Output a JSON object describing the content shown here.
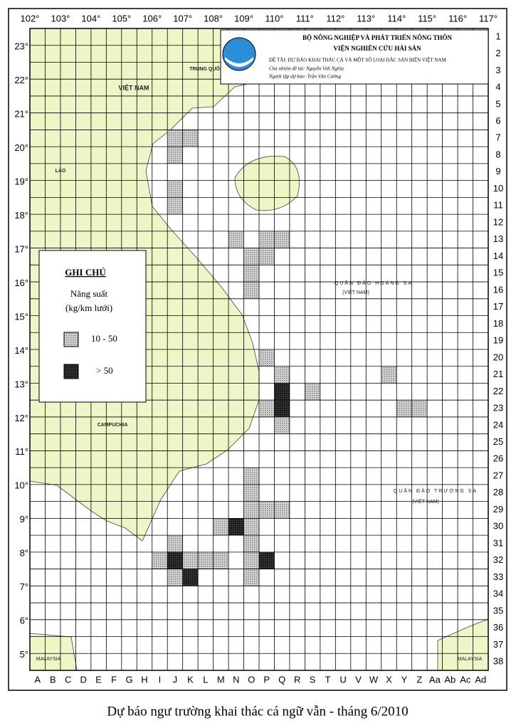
{
  "header": {
    "lines": [
      "BỘ NÔNG NGHIỆP VÀ PHÁT TRIỂN NÔNG THÔN",
      "VIỆN NGHIÊN CỨU HẢI SẢN",
      "ĐỀ TÀI: DỰ BÁO KHAI THÁC CÁ VÀ MỘT SỐ LOẠI ĐẶC SẢN BIỂN VIỆT NAM",
      "Chủ nhiệm đề tài: Nguyễn Viết Nghĩa",
      "Người lập dự báo: Trần Văn Cường"
    ]
  },
  "map": {
    "lon_ticks": [
      {
        "value": 102,
        "label": "102°"
      },
      {
        "value": 103,
        "label": "103°"
      },
      {
        "value": 104,
        "label": "104°"
      },
      {
        "value": 105,
        "label": "105°"
      },
      {
        "value": 106,
        "label": "106°"
      },
      {
        "value": 107,
        "label": "107°"
      },
      {
        "value": 108,
        "label": "108°"
      },
      {
        "value": 109,
        "label": "109°"
      },
      {
        "value": 110,
        "label": "110°"
      },
      {
        "value": 111,
        "label": "111°"
      },
      {
        "value": 112,
        "label": "112°"
      },
      {
        "value": 113,
        "label": "113°"
      },
      {
        "value": 114,
        "label": "114°"
      },
      {
        "value": 115,
        "label": "115°"
      },
      {
        "value": 116,
        "label": "116°"
      },
      {
        "value": 117,
        "label": "117°"
      }
    ],
    "lat_ticks": [
      {
        "value": 23,
        "label": "23°"
      },
      {
        "value": 22,
        "label": "22°"
      },
      {
        "value": 21,
        "label": "21°"
      },
      {
        "value": 20,
        "label": "20°"
      },
      {
        "value": 19,
        "label": "19°"
      },
      {
        "value": 18,
        "label": "18°"
      },
      {
        "value": 17,
        "label": "17°"
      },
      {
        "value": 16,
        "label": "16°"
      },
      {
        "value": 15,
        "label": "15°"
      },
      {
        "value": 14,
        "label": "14°"
      },
      {
        "value": 13,
        "label": "13°"
      },
      {
        "value": 12,
        "label": "12°"
      },
      {
        "value": 11,
        "label": "11°"
      },
      {
        "value": 10,
        "label": "10°"
      },
      {
        "value": 9,
        "label": "9°"
      },
      {
        "value": 8,
        "label": "8°"
      },
      {
        "value": 7,
        "label": "7°"
      },
      {
        "value": 6,
        "label": "6°"
      },
      {
        "value": 5,
        "label": "5°"
      }
    ],
    "columns": [
      "A",
      "B",
      "C",
      "D",
      "E",
      "F",
      "G",
      "H",
      "I",
      "J",
      "K",
      "L",
      "M",
      "N",
      "O",
      "P",
      "Q",
      "R",
      "S",
      "T",
      "U",
      "V",
      "W",
      "X",
      "Y",
      "Z",
      "Aa",
      "Ab",
      "Ac",
      "Ad"
    ],
    "rows": [
      1,
      2,
      3,
      4,
      5,
      6,
      7,
      8,
      9,
      10,
      11,
      12,
      13,
      14,
      15,
      16,
      17,
      18,
      19,
      20,
      21,
      22,
      23,
      24,
      25,
      26,
      27,
      28,
      29,
      30,
      31,
      32,
      33,
      34,
      35,
      36,
      37,
      38
    ],
    "places": [
      "VIỆT NAM",
      "LÀO",
      "CAMPUCHIA",
      "TRUNG QUỐC",
      "QUẦN ĐẢO HOÀNG SA",
      "(VIỆT NAM)",
      "QUẦN ĐẢO TRƯỜNG SA",
      "(VIỆT NAM)",
      "MALAYSIA",
      "MALAYSIA"
    ]
  },
  "legend": {
    "title": "GHI CHÚ",
    "measure": "Năng suất",
    "unit": "(kg/km lưới)",
    "classes": [
      {
        "label": "10 - 50",
        "cells": [
          [
            "J",
            7
          ],
          [
            "K",
            7
          ],
          [
            "J",
            8
          ],
          [
            "J",
            10
          ],
          [
            "J",
            11
          ],
          [
            "N",
            13
          ],
          [
            "P",
            13
          ],
          [
            "Q",
            13
          ],
          [
            "O",
            14
          ],
          [
            "P",
            14
          ],
          [
            "O",
            15
          ],
          [
            "O",
            16
          ],
          [
            "P",
            20
          ],
          [
            "Q",
            21
          ],
          [
            "X",
            21
          ],
          [
            "S",
            22
          ],
          [
            "P",
            23
          ],
          [
            "Y",
            23
          ],
          [
            "Z",
            23
          ],
          [
            "Q",
            24
          ],
          [
            "O",
            27
          ],
          [
            "O",
            28
          ],
          [
            "O",
            29
          ],
          [
            "P",
            29
          ],
          [
            "Q",
            29
          ],
          [
            "M",
            30
          ],
          [
            "O",
            30
          ],
          [
            "O",
            31
          ],
          [
            "J",
            31
          ],
          [
            "I",
            32
          ],
          [
            "K",
            32
          ],
          [
            "L",
            32
          ],
          [
            "M",
            32
          ],
          [
            "O",
            32
          ],
          [
            "J",
            33
          ],
          [
            "O",
            33
          ]
        ]
      },
      {
        "label": "> 50",
        "cells": [
          [
            "Q",
            22
          ],
          [
            "Q",
            23
          ],
          [
            "N",
            30
          ],
          [
            "J",
            32
          ],
          [
            "P",
            32
          ],
          [
            "K",
            33
          ]
        ]
      }
    ]
  },
  "caption": "Dự báo ngư trường khai thác cá ngữ vẫn - tháng 6/2010"
}
